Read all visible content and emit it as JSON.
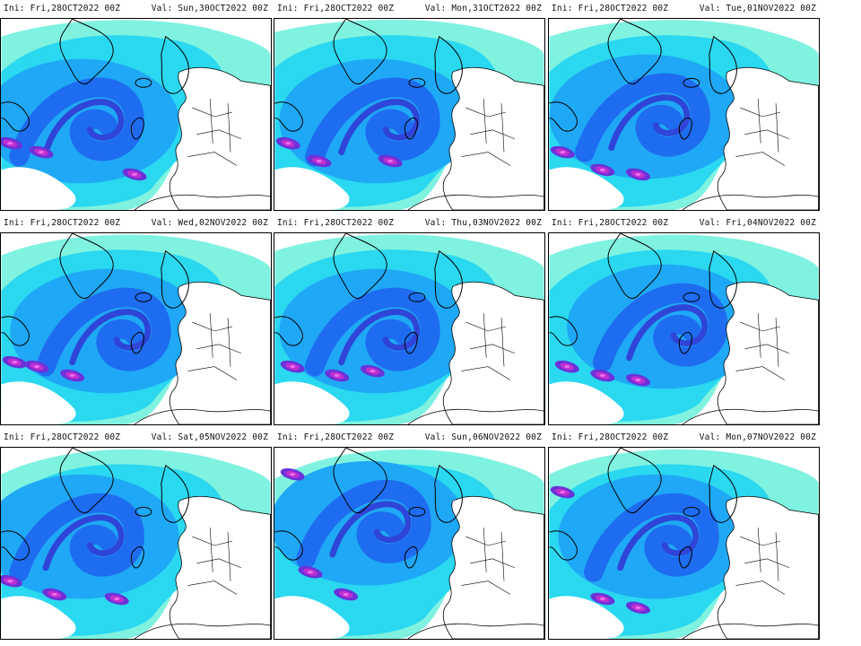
{
  "panels": [
    {
      "ini": "Ini: Fri,28OCT2022 00Z",
      "val": "Val: Sun,30OCT2022 00Z"
    },
    {
      "ini": "Ini: Fri,28OCT2022 00Z",
      "val": "Val: Mon,31OCT2022 00Z"
    },
    {
      "ini": "Ini: Fri,28OCT2022 00Z",
      "val": "Val: Tue,01NOV2022 00Z"
    },
    {
      "ini": "Ini: Fri,28OCT2022 00Z",
      "val": "Val: Wed,02NOV2022 00Z"
    },
    {
      "ini": "Ini: Fri,28OCT2022 00Z",
      "val": "Val: Thu,03NOV2022 00Z"
    },
    {
      "ini": "Ini: Fri,28OCT2022 00Z",
      "val": "Val: Fri,04NOV2022 00Z"
    },
    {
      "ini": "Ini: Fri,28OCT2022 00Z",
      "val": "Val: Sat,05NOV2022 00Z"
    },
    {
      "ini": "Ini: Fri,28OCT2022 00Z",
      "val": "Val: Sun,06NOV2022 00Z"
    },
    {
      "ini": "Ini: Fri,28OCT2022 00Z",
      "val": "Val: Mon,07NOV2022 00Z"
    }
  ],
  "colors": {
    "background": "#ffffff",
    "light_cyan": "#7ff2e0",
    "cyan": "#2ad8f0",
    "sky_blue": "#1fa8f5",
    "blue": "#1e6cf0",
    "deep_blue": "#2f45d8",
    "violet": "#6a32d8",
    "magenta": "#c030d0",
    "pink": "#f070f0",
    "coastline": "#000000"
  }
}
